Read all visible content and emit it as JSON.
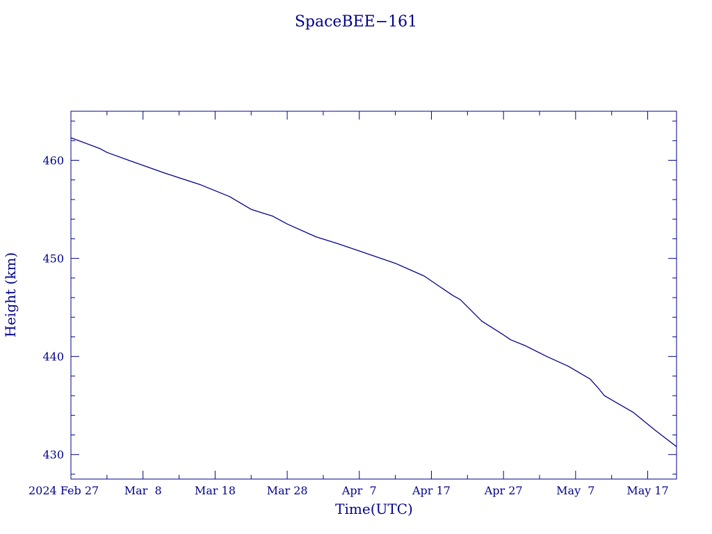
{
  "chart_data": {
    "type": "line",
    "title": "SpaceBEE−161",
    "xlabel": "Time(UTC)",
    "ylabel": "Height (km)",
    "xlim": [
      "2024-02-27",
      "2024-05-21"
    ],
    "ylim": [
      427.5,
      465
    ],
    "x_ticks": [
      {
        "date": "2024-02-27",
        "label": "2024 Feb 27"
      },
      {
        "date": "2024-03-08",
        "label": "Mar  8"
      },
      {
        "date": "2024-03-18",
        "label": "Mar 18"
      },
      {
        "date": "2024-03-28",
        "label": "Mar 28"
      },
      {
        "date": "2024-04-07",
        "label": "Apr  7"
      },
      {
        "date": "2024-04-17",
        "label": "Apr 17"
      },
      {
        "date": "2024-04-27",
        "label": "Apr 27"
      },
      {
        "date": "2024-05-07",
        "label": "May  7"
      },
      {
        "date": "2024-05-17",
        "label": "May 17"
      }
    ],
    "y_ticks": [
      430,
      440,
      450,
      460
    ],
    "grid": false,
    "color": "#00008B",
    "series": [
      {
        "x": [
          "2024-02-27",
          "2024-03-02",
          "2024-03-03",
          "2024-03-06",
          "2024-03-11",
          "2024-03-16",
          "2024-03-20",
          "2024-03-23",
          "2024-03-26",
          "2024-03-28",
          "2024-04-01",
          "2024-04-04",
          "2024-04-08",
          "2024-04-12",
          "2024-04-16",
          "2024-04-18",
          "2024-04-20",
          "2024-04-21",
          "2024-04-24",
          "2024-04-27",
          "2024-04-28",
          "2024-04-30",
          "2024-05-03",
          "2024-05-06",
          "2024-05-09",
          "2024-05-10",
          "2024-05-11",
          "2024-05-15",
          "2024-05-18",
          "2024-05-21"
        ],
        "y": [
          462.3,
          461.2,
          460.8,
          460.0,
          458.7,
          457.5,
          456.3,
          455.0,
          454.3,
          453.5,
          452.2,
          451.5,
          450.5,
          449.5,
          448.2,
          447.2,
          446.2,
          445.8,
          443.6,
          442.2,
          441.7,
          441.1,
          440.0,
          439.0,
          437.7,
          436.9,
          436.0,
          434.3,
          432.5,
          430.8
        ]
      }
    ]
  }
}
